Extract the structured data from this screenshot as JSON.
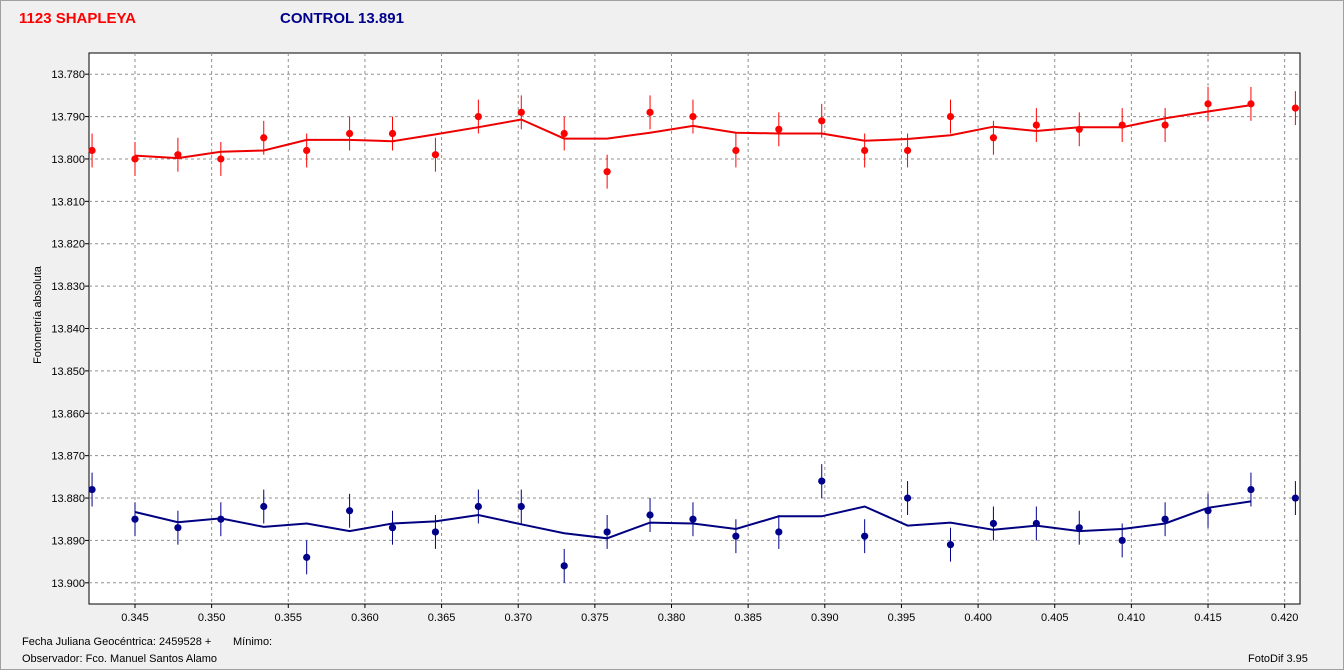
{
  "header": {
    "star_title": "1123 SHAPLEYA",
    "control_title": "CONTROL 13.891"
  },
  "footer": {
    "date_label": "Fecha Juliana Geocéntrica:",
    "date_value": "2459528 +",
    "minimum_label": "Mínimo:",
    "observer_label": "Observador:",
    "observer_value": "Fco. Manuel Santos Alamo",
    "software": "FotoDif 3.95"
  },
  "colors": {
    "star": "#ff0000",
    "star_line": "#ee0000",
    "control": "#00008b",
    "control_line": "#000080",
    "grid": "#909090",
    "axis": "#000000",
    "plot_bg": "#ffffff"
  },
  "chart_data": {
    "type": "line",
    "title": "",
    "xlabel": "",
    "ylabel": "Fotometría absoluta",
    "xlim": [
      0.342,
      0.421
    ],
    "ylim": [
      13.775,
      13.905
    ],
    "y_inverted": true,
    "grid": true,
    "x_ticks": [
      "0.345",
      "0.350",
      "0.355",
      "0.360",
      "0.365",
      "0.370",
      "0.375",
      "0.380",
      "0.385",
      "0.390",
      "0.395",
      "0.400",
      "0.405",
      "0.410",
      "0.415",
      "0.420"
    ],
    "y_ticks": [
      "13.780",
      "13.790",
      "13.800",
      "13.810",
      "13.820",
      "13.830",
      "13.840",
      "13.850",
      "13.860",
      "13.870",
      "13.880",
      "13.890",
      "13.900"
    ],
    "series": [
      {
        "name": "1123 SHAPLEYA",
        "x": [
          0.3422,
          0.345,
          0.3478,
          0.3506,
          0.3534,
          0.3562,
          0.359,
          0.3618,
          0.3646,
          0.3674,
          0.3702,
          0.373,
          0.3758,
          0.3786,
          0.3814,
          0.3842,
          0.387,
          0.3898,
          0.3926,
          0.3954,
          0.3982,
          0.401,
          0.4038,
          0.4066,
          0.4094,
          0.4122,
          0.415,
          0.4178,
          0.4207
        ],
        "points": [
          13.798,
          13.8,
          13.799,
          13.8,
          13.795,
          13.798,
          13.794,
          13.794,
          13.799,
          13.79,
          13.789,
          13.794,
          13.803,
          13.789,
          13.79,
          13.798,
          13.793,
          13.791,
          13.798,
          13.798,
          13.79,
          13.795,
          13.792,
          13.793,
          13.792,
          13.792,
          13.787,
          13.787,
          13.788
        ],
        "error": 0.004,
        "fit_x": [
          0.345,
          0.3478,
          0.3506,
          0.3534,
          0.3562,
          0.359,
          0.3618,
          0.3646,
          0.3674,
          0.3702,
          0.373,
          0.3758,
          0.3786,
          0.3814,
          0.3842,
          0.387,
          0.3898,
          0.3926,
          0.3954,
          0.3982,
          0.401,
          0.4038,
          0.4066,
          0.4094,
          0.4122,
          0.415,
          0.4178
        ],
        "fit": [
          13.7992,
          13.7998,
          13.7983,
          13.798,
          13.7955,
          13.7955,
          13.7958,
          13.7942,
          13.7925,
          13.7907,
          13.7952,
          13.7952,
          13.7938,
          13.7922,
          13.7938,
          13.794,
          13.794,
          13.7957,
          13.7953,
          13.7944,
          13.7924,
          13.7934,
          13.7925,
          13.7925,
          13.7904,
          13.7888,
          13.7873
        ]
      },
      {
        "name": "CONTROL 13.891",
        "x": [
          0.3422,
          0.345,
          0.3478,
          0.3506,
          0.3534,
          0.3562,
          0.359,
          0.3618,
          0.3646,
          0.3674,
          0.3702,
          0.373,
          0.3758,
          0.3786,
          0.3814,
          0.3842,
          0.387,
          0.3898,
          0.3926,
          0.3954,
          0.3982,
          0.401,
          0.4038,
          0.4066,
          0.4094,
          0.4122,
          0.415,
          0.4178,
          0.4207
        ],
        "points": [
          13.878,
          13.885,
          13.887,
          13.885,
          13.882,
          13.894,
          13.883,
          13.887,
          13.888,
          13.882,
          13.882,
          13.896,
          13.888,
          13.884,
          13.885,
          13.889,
          13.888,
          13.876,
          13.889,
          13.88,
          13.891,
          13.886,
          13.886,
          13.887,
          13.89,
          13.885,
          13.883,
          13.878,
          13.88
        ],
        "error": 0.004,
        "fit_x": [
          0.345,
          0.3478,
          0.3506,
          0.3534,
          0.3562,
          0.359,
          0.3618,
          0.3646,
          0.3674,
          0.3702,
          0.373,
          0.3758,
          0.3786,
          0.3814,
          0.3842,
          0.387,
          0.3898,
          0.3926,
          0.3954,
          0.3982,
          0.401,
          0.4038,
          0.4066,
          0.4094,
          0.4122,
          0.415,
          0.4178
        ],
        "fit": [
          13.8833,
          13.8857,
          13.8848,
          13.8868,
          13.886,
          13.8878,
          13.886,
          13.8855,
          13.884,
          13.8862,
          13.8883,
          13.8895,
          13.8858,
          13.886,
          13.8873,
          13.8843,
          13.8843,
          13.882,
          13.8865,
          13.8858,
          13.8875,
          13.8865,
          13.8878,
          13.8873,
          13.886,
          13.8823,
          13.8808
        ]
      }
    ]
  }
}
